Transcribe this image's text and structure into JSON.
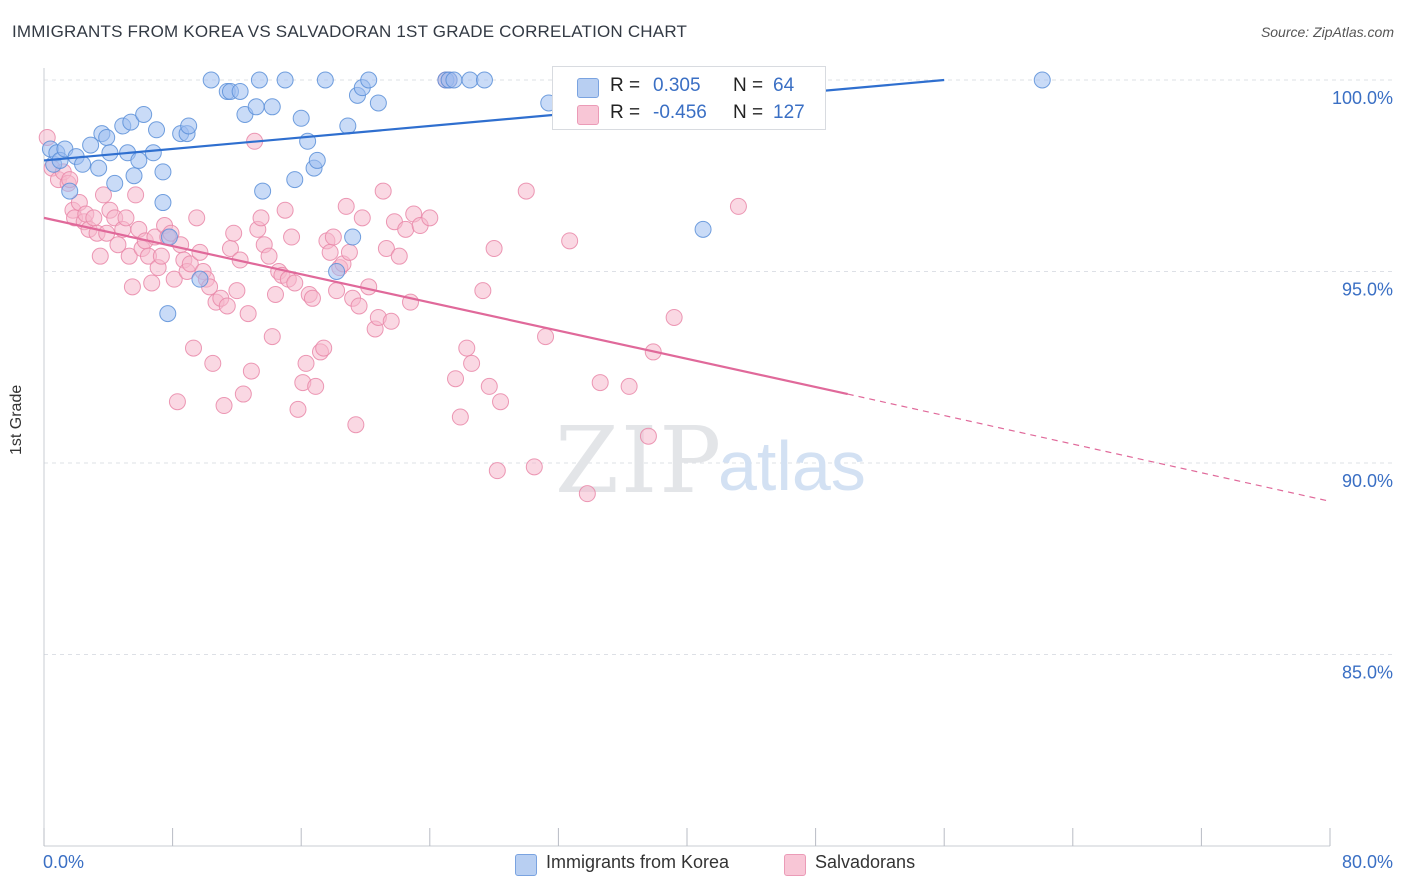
{
  "header": {
    "title": "IMMIGRANTS FROM KOREA VS SALVADORAN 1ST GRADE CORRELATION CHART",
    "source": "Source: ZipAtlas.com"
  },
  "legend_top": {
    "rows": [
      {
        "r_label": "R =",
        "r_value": "0.305",
        "n_label": "N =",
        "n_value": "64"
      },
      {
        "r_label": "R =",
        "r_value": "-0.456",
        "n_label": "N =",
        "n_value": "127"
      }
    ]
  },
  "legend_bottom": {
    "items": [
      {
        "label": "Immigrants from Korea"
      },
      {
        "label": "Salvadorans"
      }
    ]
  },
  "chart_data": {
    "type": "scatter",
    "ylabel": "1st Grade",
    "xlabel": "",
    "xlim": [
      0,
      80
    ],
    "ylim": [
      80,
      100.8
    ],
    "x_tick_labels": {
      "left": "0.0%",
      "right": "80.0%"
    },
    "y_ticks": [
      {
        "value": 100,
        "label": "100.0%"
      },
      {
        "value": 95,
        "label": "95.0%"
      },
      {
        "value": 90,
        "label": "90.0%"
      },
      {
        "value": 85,
        "label": "85.0%"
      }
    ],
    "grid": true,
    "watermark": {
      "zip": "ZIP",
      "atlas": "atlas"
    },
    "colors": {
      "korea_fill": "#9dbef0",
      "korea_stroke": "#5b8fd8",
      "korea_line": "#2f6fcf",
      "salv_fill": "#f6b8cc",
      "salv_stroke": "#e987a8",
      "salv_line": "#e0699a",
      "tick_text": "#3a6fc4",
      "grid": "#dde0e6"
    },
    "series": [
      {
        "name": "Immigrants from Korea",
        "trend": {
          "x1": 0,
          "y1": 97.9,
          "x2": 56,
          "y2": 100.0
        },
        "points": [
          [
            0.4,
            98.2
          ],
          [
            0.6,
            97.8
          ],
          [
            0.8,
            98.1
          ],
          [
            1.0,
            97.9
          ],
          [
            1.3,
            98.2
          ],
          [
            1.6,
            97.1
          ],
          [
            2.0,
            98.0
          ],
          [
            2.4,
            97.8
          ],
          [
            2.9,
            98.3
          ],
          [
            3.4,
            97.7
          ],
          [
            3.6,
            98.6
          ],
          [
            3.9,
            98.5
          ],
          [
            4.1,
            98.1
          ],
          [
            4.4,
            97.3
          ],
          [
            4.9,
            98.8
          ],
          [
            5.2,
            98.1
          ],
          [
            5.4,
            98.9
          ],
          [
            5.6,
            97.5
          ],
          [
            5.9,
            97.9
          ],
          [
            6.2,
            99.1
          ],
          [
            6.8,
            98.1
          ],
          [
            7.0,
            98.7
          ],
          [
            7.4,
            97.6
          ],
          [
            7.4,
            96.8
          ],
          [
            7.7,
            93.9
          ],
          [
            7.8,
            95.9
          ],
          [
            8.5,
            98.6
          ],
          [
            8.9,
            98.6
          ],
          [
            9.0,
            98.8
          ],
          [
            9.7,
            94.8
          ],
          [
            10.4,
            100.0
          ],
          [
            11.4,
            99.7
          ],
          [
            11.6,
            99.7
          ],
          [
            12.2,
            99.7
          ],
          [
            12.5,
            99.1
          ],
          [
            13.2,
            99.3
          ],
          [
            13.4,
            100.0
          ],
          [
            13.6,
            97.1
          ],
          [
            14.2,
            99.3
          ],
          [
            15.0,
            100.0
          ],
          [
            15.6,
            97.4
          ],
          [
            16.0,
            99.0
          ],
          [
            16.4,
            98.4
          ],
          [
            16.8,
            97.7
          ],
          [
            17.0,
            97.9
          ],
          [
            17.5,
            100.0
          ],
          [
            18.2,
            95.0
          ],
          [
            18.9,
            98.8
          ],
          [
            19.2,
            95.9
          ],
          [
            19.5,
            99.6
          ],
          [
            19.8,
            99.8
          ],
          [
            20.2,
            100.0
          ],
          [
            20.8,
            99.4
          ],
          [
            25.0,
            100.0
          ],
          [
            25.2,
            100.0
          ],
          [
            25.5,
            100.0
          ],
          [
            26.5,
            100.0
          ],
          [
            27.4,
            100.0
          ],
          [
            31.4,
            99.4
          ],
          [
            32.3,
            100.0
          ],
          [
            39.6,
            100.0
          ],
          [
            39.8,
            100.0
          ],
          [
            41.0,
            96.1
          ],
          [
            62.1,
            100.0
          ]
        ]
      },
      {
        "name": "Salvadorans",
        "trend": {
          "x1": 0,
          "y1": 96.4,
          "x2": 50,
          "y2": 91.8
        },
        "trend_extension": {
          "x1": 50,
          "y1": 91.8,
          "x2": 80,
          "y2": 89.0
        },
        "points": [
          [
            0.2,
            98.5
          ],
          [
            0.5,
            97.7
          ],
          [
            0.9,
            97.4
          ],
          [
            1.2,
            97.6
          ],
          [
            1.5,
            97.3
          ],
          [
            1.6,
            97.4
          ],
          [
            1.8,
            96.6
          ],
          [
            1.9,
            96.4
          ],
          [
            2.2,
            96.8
          ],
          [
            2.5,
            96.3
          ],
          [
            2.6,
            96.5
          ],
          [
            2.8,
            96.1
          ],
          [
            3.1,
            96.4
          ],
          [
            3.3,
            96.0
          ],
          [
            3.5,
            95.4
          ],
          [
            3.7,
            97.0
          ],
          [
            3.9,
            96.0
          ],
          [
            4.1,
            96.6
          ],
          [
            4.4,
            96.4
          ],
          [
            4.6,
            95.7
          ],
          [
            4.9,
            96.1
          ],
          [
            5.1,
            96.4
          ],
          [
            5.3,
            95.4
          ],
          [
            5.5,
            94.6
          ],
          [
            5.7,
            97.0
          ],
          [
            5.9,
            96.1
          ],
          [
            6.1,
            95.6
          ],
          [
            6.3,
            95.8
          ],
          [
            6.5,
            95.4
          ],
          [
            6.7,
            94.7
          ],
          [
            6.9,
            95.9
          ],
          [
            7.1,
            95.1
          ],
          [
            7.3,
            95.4
          ],
          [
            7.5,
            96.2
          ],
          [
            7.7,
            95.9
          ],
          [
            7.9,
            96.0
          ],
          [
            8.1,
            94.8
          ],
          [
            8.3,
            91.6
          ],
          [
            8.5,
            95.7
          ],
          [
            8.7,
            95.3
          ],
          [
            8.9,
            95.0
          ],
          [
            9.1,
            95.2
          ],
          [
            9.3,
            93.0
          ],
          [
            9.5,
            96.4
          ],
          [
            9.7,
            95.5
          ],
          [
            9.9,
            95.0
          ],
          [
            10.1,
            94.8
          ],
          [
            10.3,
            94.6
          ],
          [
            10.5,
            92.6
          ],
          [
            10.7,
            94.2
          ],
          [
            11.0,
            94.3
          ],
          [
            11.2,
            91.5
          ],
          [
            11.4,
            94.1
          ],
          [
            11.6,
            95.6
          ],
          [
            11.8,
            96.0
          ],
          [
            12.0,
            94.5
          ],
          [
            12.2,
            95.3
          ],
          [
            12.4,
            91.8
          ],
          [
            12.7,
            93.9
          ],
          [
            12.9,
            92.4
          ],
          [
            13.1,
            98.4
          ],
          [
            13.3,
            96.1
          ],
          [
            13.5,
            96.4
          ],
          [
            13.7,
            95.7
          ],
          [
            14.0,
            95.4
          ],
          [
            14.2,
            93.3
          ],
          [
            14.4,
            94.4
          ],
          [
            14.6,
            95.0
          ],
          [
            14.8,
            94.9
          ],
          [
            15.0,
            96.6
          ],
          [
            15.2,
            94.8
          ],
          [
            15.4,
            95.9
          ],
          [
            15.6,
            94.7
          ],
          [
            15.8,
            91.4
          ],
          [
            16.1,
            92.1
          ],
          [
            16.3,
            92.6
          ],
          [
            16.5,
            94.4
          ],
          [
            16.7,
            94.3
          ],
          [
            16.9,
            92.0
          ],
          [
            17.2,
            92.9
          ],
          [
            17.4,
            93.0
          ],
          [
            17.6,
            95.8
          ],
          [
            17.8,
            95.5
          ],
          [
            18.0,
            95.9
          ],
          [
            18.2,
            94.5
          ],
          [
            18.4,
            95.1
          ],
          [
            18.6,
            95.2
          ],
          [
            18.8,
            96.7
          ],
          [
            19.0,
            95.5
          ],
          [
            19.2,
            94.3
          ],
          [
            19.4,
            91.0
          ],
          [
            19.6,
            94.1
          ],
          [
            19.8,
            96.4
          ],
          [
            20.2,
            94.6
          ],
          [
            20.6,
            93.5
          ],
          [
            20.8,
            93.8
          ],
          [
            21.1,
            97.1
          ],
          [
            21.3,
            95.6
          ],
          [
            21.6,
            93.7
          ],
          [
            21.8,
            96.3
          ],
          [
            22.1,
            95.4
          ],
          [
            22.5,
            96.1
          ],
          [
            22.8,
            94.2
          ],
          [
            23.0,
            96.5
          ],
          [
            23.4,
            96.2
          ],
          [
            24.0,
            96.4
          ],
          [
            25.0,
            100.0
          ],
          [
            25.2,
            100.0
          ],
          [
            25.6,
            92.2
          ],
          [
            25.9,
            91.2
          ],
          [
            26.3,
            93.0
          ],
          [
            26.6,
            92.6
          ],
          [
            27.3,
            94.5
          ],
          [
            27.7,
            92.0
          ],
          [
            28.0,
            95.6
          ],
          [
            28.2,
            89.8
          ],
          [
            28.4,
            91.6
          ],
          [
            30.0,
            97.1
          ],
          [
            30.5,
            89.9
          ],
          [
            31.2,
            93.3
          ],
          [
            32.7,
            95.8
          ],
          [
            33.8,
            89.2
          ],
          [
            34.6,
            92.1
          ],
          [
            36.4,
            92.0
          ],
          [
            37.6,
            90.7
          ],
          [
            37.9,
            92.9
          ],
          [
            39.2,
            93.8
          ],
          [
            43.2,
            96.7
          ]
        ]
      }
    ]
  }
}
